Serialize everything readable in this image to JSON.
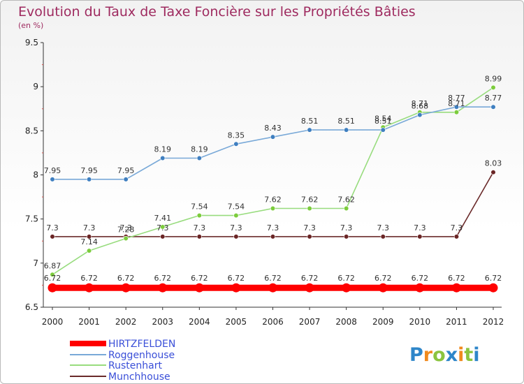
{
  "chart_data": {
    "type": "line",
    "title": "Evolution du Taux de Taxe Foncière sur les Propriétés Bâties",
    "subtitle": "(en %)",
    "x": [
      "2000",
      "2001",
      "2002",
      "2003",
      "2004",
      "2005",
      "2006",
      "2007",
      "2008",
      "2009",
      "2010",
      "2011",
      "2012"
    ],
    "ylim": [
      6.5,
      9.5
    ],
    "yticks": [
      "6.5",
      "7",
      "7.5",
      "8",
      "8.5",
      "9",
      "9.5"
    ],
    "series": [
      {
        "name": "HIRTZFELDEN",
        "color": "#ff0000",
        "values": [
          6.72,
          6.72,
          6.72,
          6.72,
          6.72,
          6.72,
          6.72,
          6.72,
          6.72,
          6.72,
          6.72,
          6.72,
          6.72
        ],
        "labels": [
          "6.72",
          "6.72",
          "6.72",
          "6.72",
          "6.72",
          "6.72",
          "6.72",
          "6.72",
          "6.72",
          "6.72",
          "6.72",
          "6.72",
          "6.72"
        ]
      },
      {
        "name": "Roggenhouse",
        "color": "#79a9d8",
        "values": [
          7.95,
          7.95,
          7.95,
          8.19,
          8.19,
          8.35,
          8.43,
          8.51,
          8.51,
          8.51,
          8.68,
          8.77,
          8.77
        ],
        "labels": [
          "7.95",
          "7.95",
          "7.95",
          "8.19",
          "8.19",
          "8.35",
          "8.43",
          "8.51",
          "8.51",
          "8.51",
          "8.68",
          "8.77",
          "8.77"
        ]
      },
      {
        "name": "Rustenhart",
        "color": "#98dc7e",
        "values": [
          6.87,
          7.14,
          7.28,
          7.41,
          7.54,
          7.54,
          7.62,
          7.62,
          7.62,
          8.54,
          8.71,
          8.71,
          8.99
        ],
        "labels": [
          "6.87",
          "7.14",
          "7.28",
          "7.41",
          "7.54",
          "7.54",
          "7.62",
          "7.62",
          "7.62",
          "8.54",
          "8.71",
          "8.71",
          "8.99"
        ]
      },
      {
        "name": "Munchhouse",
        "color": "#6a2a2a",
        "values": [
          7.3,
          7.3,
          7.3,
          7.3,
          7.3,
          7.3,
          7.3,
          7.3,
          7.3,
          7.3,
          7.3,
          7.3,
          8.03
        ],
        "labels": [
          "7.3",
          "7.3",
          "7.3",
          "7.3",
          "7.3",
          "7.3",
          "7.3",
          "7.3",
          "7.3",
          "7.3",
          "7.3",
          "7.3",
          "8.03"
        ]
      }
    ]
  },
  "brand": {
    "letters": [
      "P",
      "r",
      "o",
      "x",
      "i",
      "t",
      "i"
    ],
    "colors": [
      "#2e86c9",
      "#f08a1e",
      "#8bc43f",
      "#2e86c9",
      "#f08a1e",
      "#8bc43f",
      "#2e86c9"
    ]
  },
  "colors": {
    "title": "#9e2a5f",
    "legend_text": "#3a4fd8",
    "axis": "#333333"
  }
}
